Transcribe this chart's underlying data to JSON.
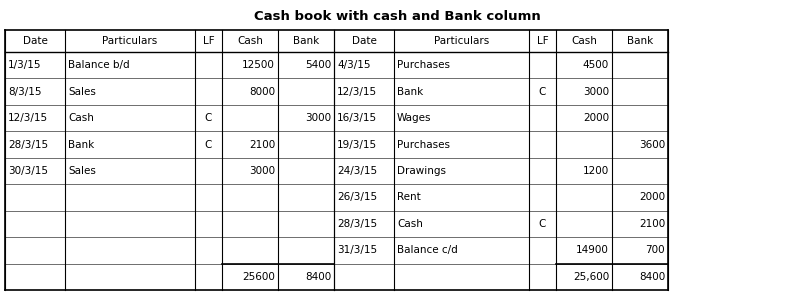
{
  "title": "Cash book with cash and Bank column",
  "headers_left": [
    "Date",
    "Particulars",
    "LF",
    "Cash",
    "Bank"
  ],
  "headers_right": [
    "Date",
    "Particulars",
    "LF",
    "Cash",
    "Bank"
  ],
  "left_rows": [
    [
      "1/3/15",
      "Balance b/d",
      "",
      "12500",
      "5400"
    ],
    [
      "8/3/15",
      "Sales",
      "",
      "8000",
      ""
    ],
    [
      "12/3/15",
      "Cash",
      "C",
      "",
      "3000"
    ],
    [
      "28/3/15",
      "Bank",
      "C",
      "2100",
      ""
    ],
    [
      "30/3/15",
      "Sales",
      "",
      "3000",
      ""
    ],
    [
      "",
      "",
      "",
      "",
      ""
    ],
    [
      "",
      "",
      "",
      "",
      ""
    ],
    [
      "",
      "",
      "",
      "",
      ""
    ],
    [
      "",
      "",
      "",
      "25600",
      "8400"
    ]
  ],
  "right_rows": [
    [
      "4/3/15",
      "Purchases",
      "",
      "4500",
      ""
    ],
    [
      "12/3/15",
      "Bank",
      "C",
      "3000",
      ""
    ],
    [
      "16/3/15",
      "Wages",
      "",
      "2000",
      ""
    ],
    [
      "19/3/15",
      "Purchases",
      "",
      "",
      "3600"
    ],
    [
      "24/3/15",
      "Drawings",
      "",
      "1200",
      ""
    ],
    [
      "26/3/15",
      "Rent",
      "",
      "",
      "2000"
    ],
    [
      "28/3/15",
      "Cash",
      "C",
      "",
      "2100"
    ],
    [
      "31/3/15",
      "Balance c/d",
      "",
      "14900",
      "700"
    ],
    [
      "",
      "",
      "",
      "25,600",
      "8400"
    ]
  ],
  "background_color": "#ffffff",
  "font_size": 7.5,
  "title_font_size": 9.5,
  "figsize": [
    7.94,
    2.95
  ],
  "dpi": 100
}
